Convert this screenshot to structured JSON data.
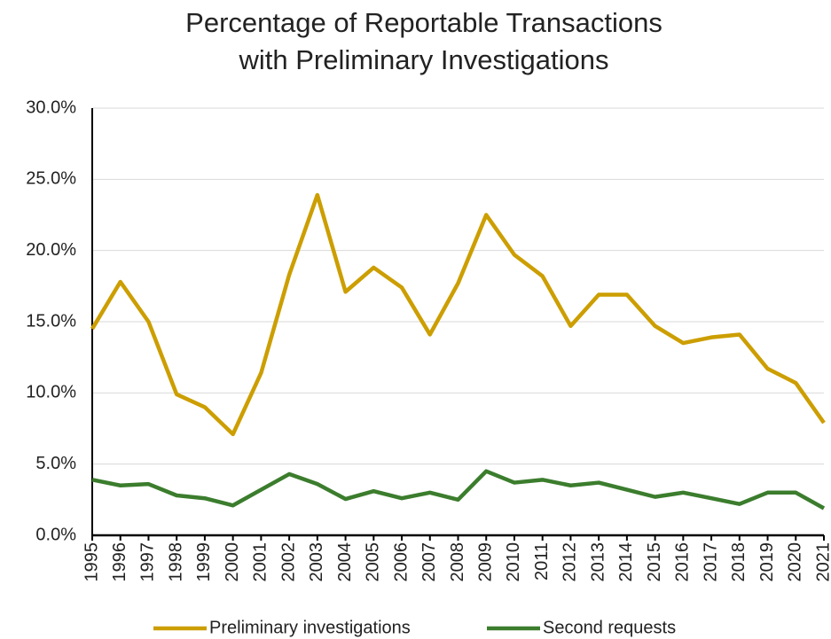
{
  "chart_data": {
    "type": "line",
    "title": [
      "Percentage of Reportable Transactions",
      "with Preliminary Investigations"
    ],
    "categories": [
      "1995",
      "1996",
      "1997",
      "1998",
      "1999",
      "2000",
      "2001",
      "2002",
      "2003",
      "2004",
      "2005",
      "2006",
      "2007",
      "2008",
      "2009",
      "2010",
      "2011",
      "2012",
      "2013",
      "2014",
      "2015",
      "2016",
      "2017",
      "2018",
      "2019",
      "2020",
      "2021"
    ],
    "series": [
      {
        "name": "Preliminary investigations",
        "color": "#cc9e00",
        "values": [
          14.5,
          17.8,
          15.0,
          9.9,
          9.0,
          7.1,
          11.4,
          18.3,
          23.9,
          17.1,
          18.8,
          17.4,
          14.1,
          17.7,
          22.5,
          19.7,
          18.2,
          14.7,
          16.9,
          16.9,
          14.7,
          13.5,
          13.9,
          14.1,
          11.7,
          10.7,
          7.9
        ]
      },
      {
        "name": "Second requests",
        "color": "#3b7d2d",
        "values": [
          3.9,
          3.5,
          3.6,
          2.8,
          2.6,
          2.1,
          3.2,
          4.3,
          3.6,
          2.55,
          3.1,
          2.6,
          3.0,
          2.5,
          4.5,
          3.7,
          3.9,
          3.5,
          3.7,
          3.2,
          2.7,
          3.0,
          2.6,
          2.2,
          3.0,
          3.0,
          1.9
        ]
      }
    ],
    "ylim": [
      0,
      30
    ],
    "yticks": [
      {
        "value": 0,
        "label": "0.0%"
      },
      {
        "value": 5,
        "label": "5.0%"
      },
      {
        "value": 10,
        "label": "10.0%"
      },
      {
        "value": 15,
        "label": "15.0%"
      },
      {
        "value": 20,
        "label": "20.0%"
      },
      {
        "value": 25,
        "label": "25.0%"
      },
      {
        "value": 30,
        "label": "30.0%"
      }
    ],
    "grid": true,
    "legend": "bottom"
  }
}
